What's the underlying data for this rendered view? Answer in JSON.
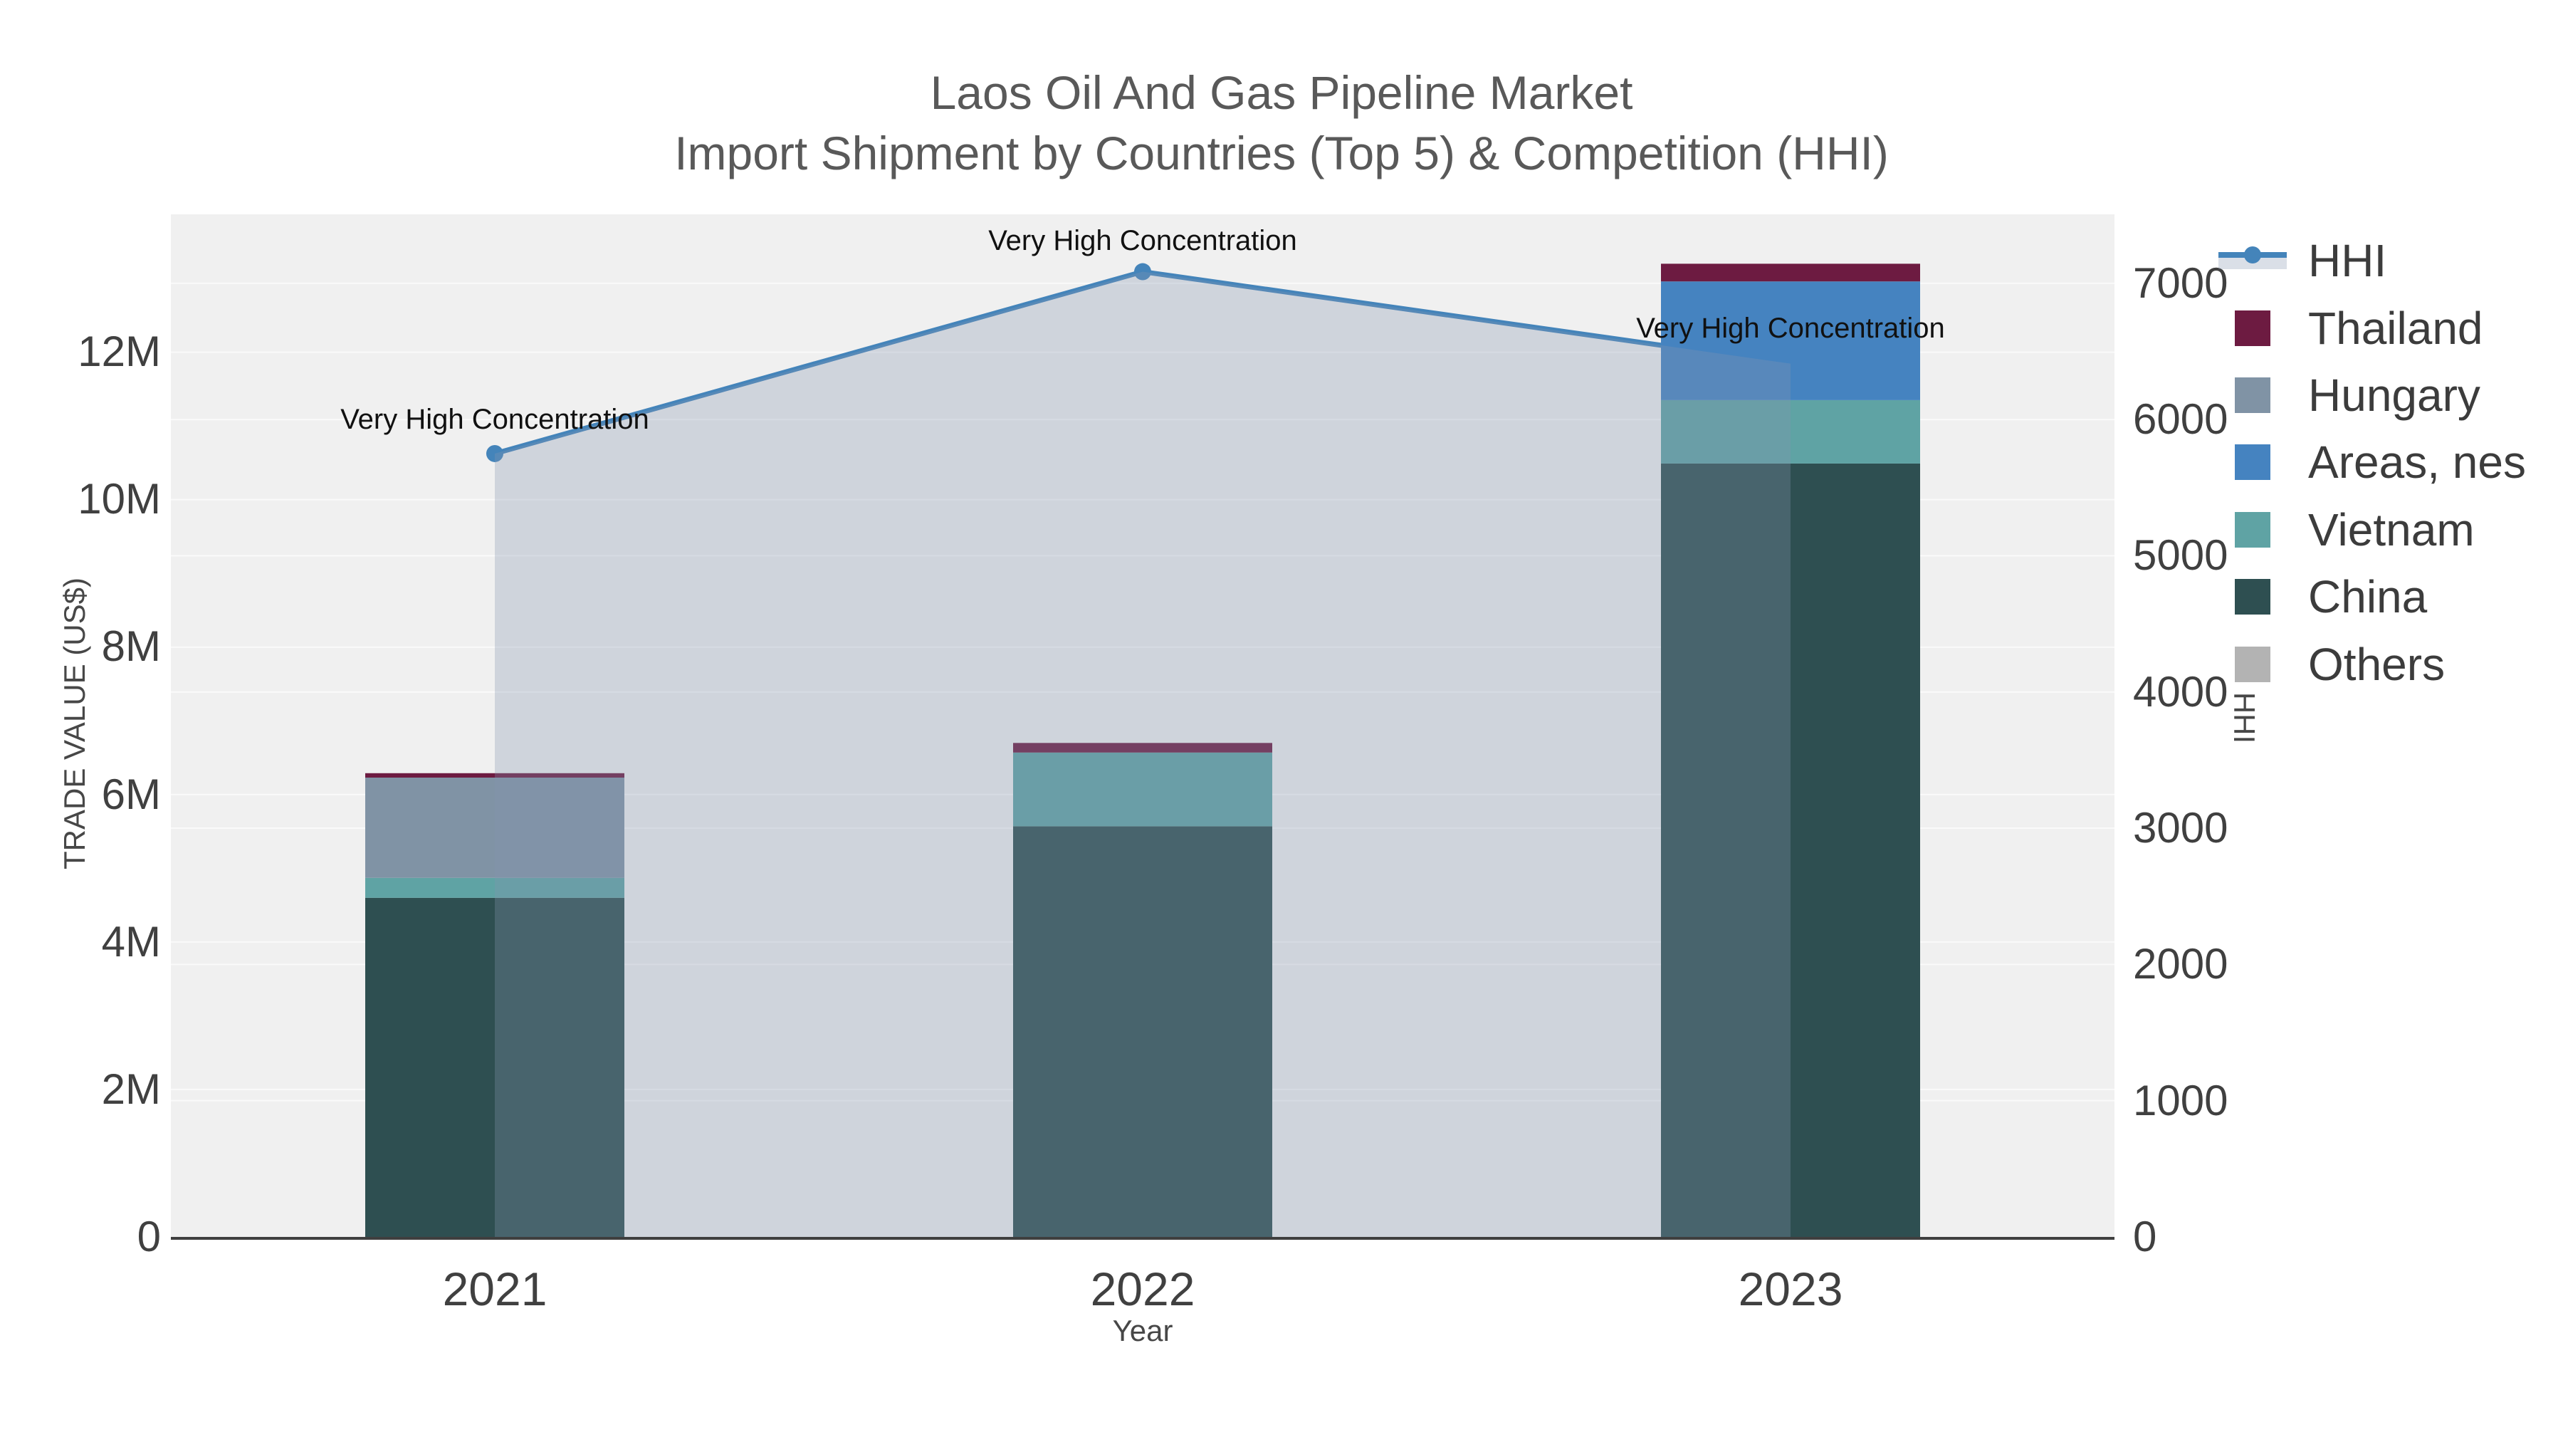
{
  "title": {
    "line1": "Laos Oil And Gas Pipeline Market",
    "line2": "Import Shipment by Countries (Top 5) & Competition (HHI)"
  },
  "axes": {
    "x": {
      "title": "Year",
      "ticks": [
        "2021",
        "2022",
        "2023"
      ]
    },
    "y_left": {
      "title": "TRADE VALUE (US$)",
      "ticks": [
        "0",
        "2M",
        "4M",
        "6M",
        "8M",
        "10M",
        "12M"
      ]
    },
    "y_right": {
      "title": "HHI",
      "ticks": [
        "0",
        "1000",
        "2000",
        "3000",
        "4000",
        "5000",
        "6000",
        "7000"
      ]
    }
  },
  "legend": {
    "items": [
      {
        "label": "HHI",
        "color": "#4484ba",
        "type": "line"
      },
      {
        "label": "Thailand",
        "color": "#6d1b41",
        "type": "bar"
      },
      {
        "label": "Hungary",
        "color": "#8093a5",
        "type": "bar"
      },
      {
        "label": "Areas, nes",
        "color": "#4583c0",
        "type": "bar"
      },
      {
        "label": "Vietnam",
        "color": "#5fa3a4",
        "type": "bar"
      },
      {
        "label": "China",
        "color": "#2e4f51",
        "type": "bar"
      },
      {
        "label": "Others",
        "color": "#b3b3b3",
        "type": "bar"
      }
    ]
  },
  "annotations": [
    {
      "category": "2021",
      "text": "Very High Concentration"
    },
    {
      "category": "2022",
      "text": "Very High Concentration"
    },
    {
      "category": "2023",
      "text": "Very High Concentration"
    }
  ],
  "chart_data": {
    "type": "combo-stacked-bar-line",
    "title": "Laos Oil And Gas Pipeline Market — Import Shipment by Countries (Top 5) & Competition (HHI)",
    "categories": [
      "2021",
      "2022",
      "2023"
    ],
    "xlabel": "Year",
    "legend_position": "right",
    "grid": true,
    "y_left": {
      "label": "TRADE VALUE (US$)",
      "unit": "US$",
      "range": [
        0,
        13870000
      ],
      "grid_step": 2000000
    },
    "y_right": {
      "label": "HHI",
      "range": [
        0,
        7506
      ],
      "grid_step": 1000
    },
    "bar_series": [
      {
        "name": "China",
        "color": "#2e4f51",
        "values": [
          4600000,
          5570000,
          10490000
        ]
      },
      {
        "name": "Vietnam",
        "color": "#5fa3a4",
        "values": [
          270000,
          1000000,
          860000
        ]
      },
      {
        "name": "Hungary",
        "color": "#8093a5",
        "values": [
          1360000,
          0,
          0
        ]
      },
      {
        "name": "Areas, nes",
        "color": "#4583c0",
        "values": [
          0,
          0,
          1610000
        ]
      },
      {
        "name": "Thailand",
        "color": "#6d1b41",
        "values": [
          60000,
          130000,
          240000
        ]
      },
      {
        "name": "Others",
        "color": "#b3b3b3",
        "values": [
          0,
          0,
          0
        ]
      }
    ],
    "line_series": {
      "name": "HHI",
      "axis": "right",
      "color": "#4484ba",
      "fill_color": "rgba(133,148,176,0.30)",
      "values": [
        5750,
        7085,
        6410
      ]
    },
    "annotations": [
      "Very High Concentration",
      "Very High Concentration",
      "Very High Concentration"
    ]
  }
}
